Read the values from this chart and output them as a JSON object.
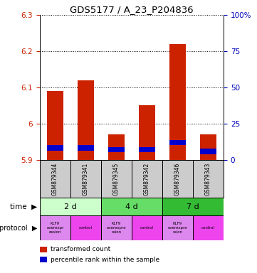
{
  "title": "GDS5177 / A_23_P204836",
  "samples": [
    "GSM879344",
    "GSM879341",
    "GSM879345",
    "GSM879342",
    "GSM879346",
    "GSM879343"
  ],
  "transformed_counts": [
    6.09,
    6.12,
    5.97,
    6.05,
    6.22,
    5.97
  ],
  "percentile_bottoms": [
    5.925,
    5.925,
    5.92,
    5.92,
    5.94,
    5.915
  ],
  "percentile_tops": [
    5.94,
    5.94,
    5.935,
    5.935,
    5.955,
    5.93
  ],
  "bar_bottom": 5.9,
  "ylim_left": [
    5.9,
    6.3
  ],
  "ylim_right": [
    0,
    100
  ],
  "yticks_left": [
    5.9,
    6.0,
    6.1,
    6.2,
    6.3
  ],
  "yticks_right": [
    0,
    25,
    50,
    75,
    100
  ],
  "ytick_labels_left": [
    "5.9",
    "6",
    "6.1",
    "6.2",
    "6.3"
  ],
  "ytick_labels_right": [
    "0",
    "25",
    "50",
    "75",
    "100%"
  ],
  "time_colors": [
    "#ccffcc",
    "#66dd66",
    "#33bb33"
  ],
  "time_labels": [
    "2 d",
    "4 d",
    "7 d"
  ],
  "proto_labels": [
    "KLF9\noverexpr\nession",
    "control",
    "KLF9\noverexpre\nssion",
    "control",
    "KLF9\noverexpre\nssion",
    "control"
  ],
  "proto_colors": [
    "#dd88ee",
    "#ee44ee",
    "#dd88ee",
    "#ee44ee",
    "#dd88ee",
    "#ee44ee"
  ],
  "red_color": "#cc2200",
  "blue_color": "#0000cc",
  "bar_width": 0.55,
  "sample_box_color": "#cccccc",
  "left_tick_color": "#cc2200",
  "right_tick_color": "#0000bb"
}
